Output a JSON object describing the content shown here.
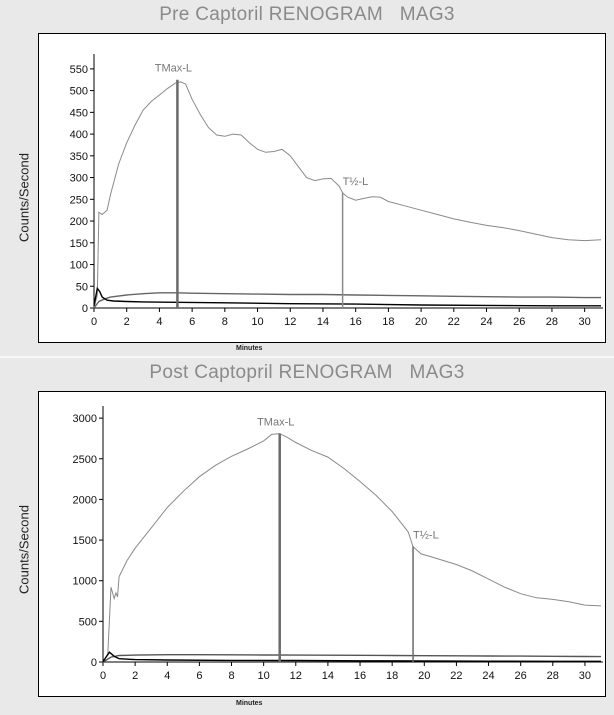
{
  "chart_data": [
    {
      "type": "line",
      "title": "Pre Captoril RENOGRAM   MAG3",
      "xlabel": "Minutes",
      "ylabel": "Counts/Second",
      "xlim": [
        0,
        31
      ],
      "ylim": [
        0,
        575
      ],
      "xticks": [
        "0",
        "2",
        "4",
        "6",
        "8",
        "10",
        "12",
        "14",
        "16",
        "18",
        "20",
        "22",
        "24",
        "26",
        "28",
        "30"
      ],
      "yticks": [
        "0",
        "50",
        "100",
        "150",
        "200",
        "250",
        "300",
        "350",
        "400",
        "450",
        "500",
        "550"
      ],
      "series": [
        {
          "color": "#8a8a8a",
          "x": [
            0,
            0.2,
            0.3,
            0.5,
            0.8,
            1,
            1.5,
            2,
            2.5,
            3,
            3.5,
            4,
            4.5,
            5,
            5.3,
            5.6,
            6,
            6.5,
            7,
            7.5,
            8,
            8.5,
            9,
            9.5,
            10,
            10.5,
            11,
            11.5,
            12,
            12.5,
            13,
            13.5,
            14,
            14.5,
            15,
            15.2,
            15.5,
            16,
            16.5,
            17,
            17.5,
            18,
            19,
            20,
            21,
            22,
            23,
            24,
            25,
            26,
            27,
            28,
            29,
            30,
            31
          ],
          "y": [
            0,
            30,
            220,
            215,
            225,
            260,
            330,
            380,
            420,
            455,
            475,
            490,
            505,
            518,
            520,
            515,
            480,
            445,
            415,
            398,
            395,
            400,
            398,
            380,
            365,
            358,
            360,
            365,
            350,
            325,
            300,
            293,
            297,
            298,
            280,
            265,
            255,
            248,
            252,
            256,
            255,
            245,
            235,
            225,
            215,
            205,
            197,
            190,
            185,
            178,
            170,
            162,
            157,
            155,
            157
          ]
        },
        {
          "color": "#666666",
          "x": [
            0,
            0.3,
            0.6,
            1,
            2,
            3,
            4,
            5,
            6,
            8,
            10,
            12,
            14,
            16,
            18,
            20,
            22,
            24,
            26,
            28,
            30,
            31
          ],
          "y": [
            0,
            15,
            20,
            25,
            30,
            33,
            35,
            35,
            34,
            33,
            32,
            31,
            31,
            30,
            29,
            28,
            27,
            26,
            25,
            25,
            24,
            24
          ]
        },
        {
          "color": "#000000",
          "x": [
            0,
            0.2,
            0.35,
            0.5,
            0.8,
            1.2,
            2,
            3,
            5,
            8,
            12,
            16,
            20,
            24,
            28,
            31
          ],
          "y": [
            5,
            45,
            38,
            25,
            18,
            16,
            15,
            14,
            13,
            12,
            10,
            9,
            7,
            6,
            5,
            5
          ]
        }
      ],
      "markers": [
        {
          "label": "TMax-L",
          "x": 5.1,
          "y": 525,
          "color": "#6a6a6a"
        },
        {
          "label": "T½-L",
          "x": 15.2,
          "y": 265,
          "color": "#8a8a8a"
        }
      ],
      "grid": false
    },
    {
      "type": "line",
      "title": "Post Captopril RENOGRAM   MAG3",
      "xlabel": "Minutes",
      "ylabel": "Counts/Second",
      "xlim": [
        0,
        31
      ],
      "ylim": [
        0,
        3100
      ],
      "xticks": [
        "0",
        "2",
        "4",
        "6",
        "8",
        "10",
        "12",
        "14",
        "16",
        "18",
        "20",
        "22",
        "24",
        "26",
        "28",
        "30"
      ],
      "yticks": [
        "0",
        "500",
        "1000",
        "1500",
        "2000",
        "2500",
        "3000"
      ],
      "series": [
        {
          "color": "#8a8a8a",
          "x": [
            0,
            0.3,
            0.5,
            0.6,
            0.7,
            0.8,
            0.9,
            1,
            1.5,
            2,
            3,
            4,
            5,
            6,
            7,
            8,
            9,
            10,
            10.5,
            11,
            11.5,
            12,
            13,
            14,
            15,
            16,
            17,
            18,
            19,
            19.3,
            19.8,
            20.5,
            21,
            22,
            23,
            24,
            25,
            26,
            27,
            28,
            29,
            30,
            31
          ],
          "y": [
            0,
            100,
            920,
            850,
            780,
            850,
            800,
            1050,
            1250,
            1400,
            1650,
            1900,
            2100,
            2280,
            2420,
            2530,
            2620,
            2720,
            2800,
            2810,
            2760,
            2700,
            2600,
            2520,
            2380,
            2220,
            2050,
            1850,
            1600,
            1420,
            1330,
            1290,
            1260,
            1200,
            1120,
            1020,
            920,
            840,
            790,
            770,
            740,
            700,
            690
          ]
        },
        {
          "color": "#555555",
          "x": [
            0,
            0.5,
            1,
            2,
            4,
            6,
            8,
            10,
            12,
            14,
            16,
            18,
            20,
            22,
            24,
            26,
            28,
            30,
            31
          ],
          "y": [
            0,
            60,
            80,
            85,
            90,
            90,
            88,
            86,
            85,
            84,
            82,
            80,
            78,
            76,
            74,
            72,
            70,
            68,
            67
          ]
        },
        {
          "color": "#000000",
          "x": [
            0,
            0.4,
            0.7,
            1,
            2,
            4,
            8,
            12,
            16,
            20,
            24,
            28,
            31
          ],
          "y": [
            5,
            120,
            70,
            40,
            30,
            25,
            20,
            18,
            15,
            12,
            10,
            8,
            8
          ]
        }
      ],
      "markers": [
        {
          "label": "TMax-L",
          "x": 11.0,
          "y": 2810,
          "color": "#6a6a6a"
        },
        {
          "label": "T½-L",
          "x": 19.3,
          "y": 1420,
          "color": "#6a6a6a"
        }
      ],
      "grid": false
    }
  ]
}
